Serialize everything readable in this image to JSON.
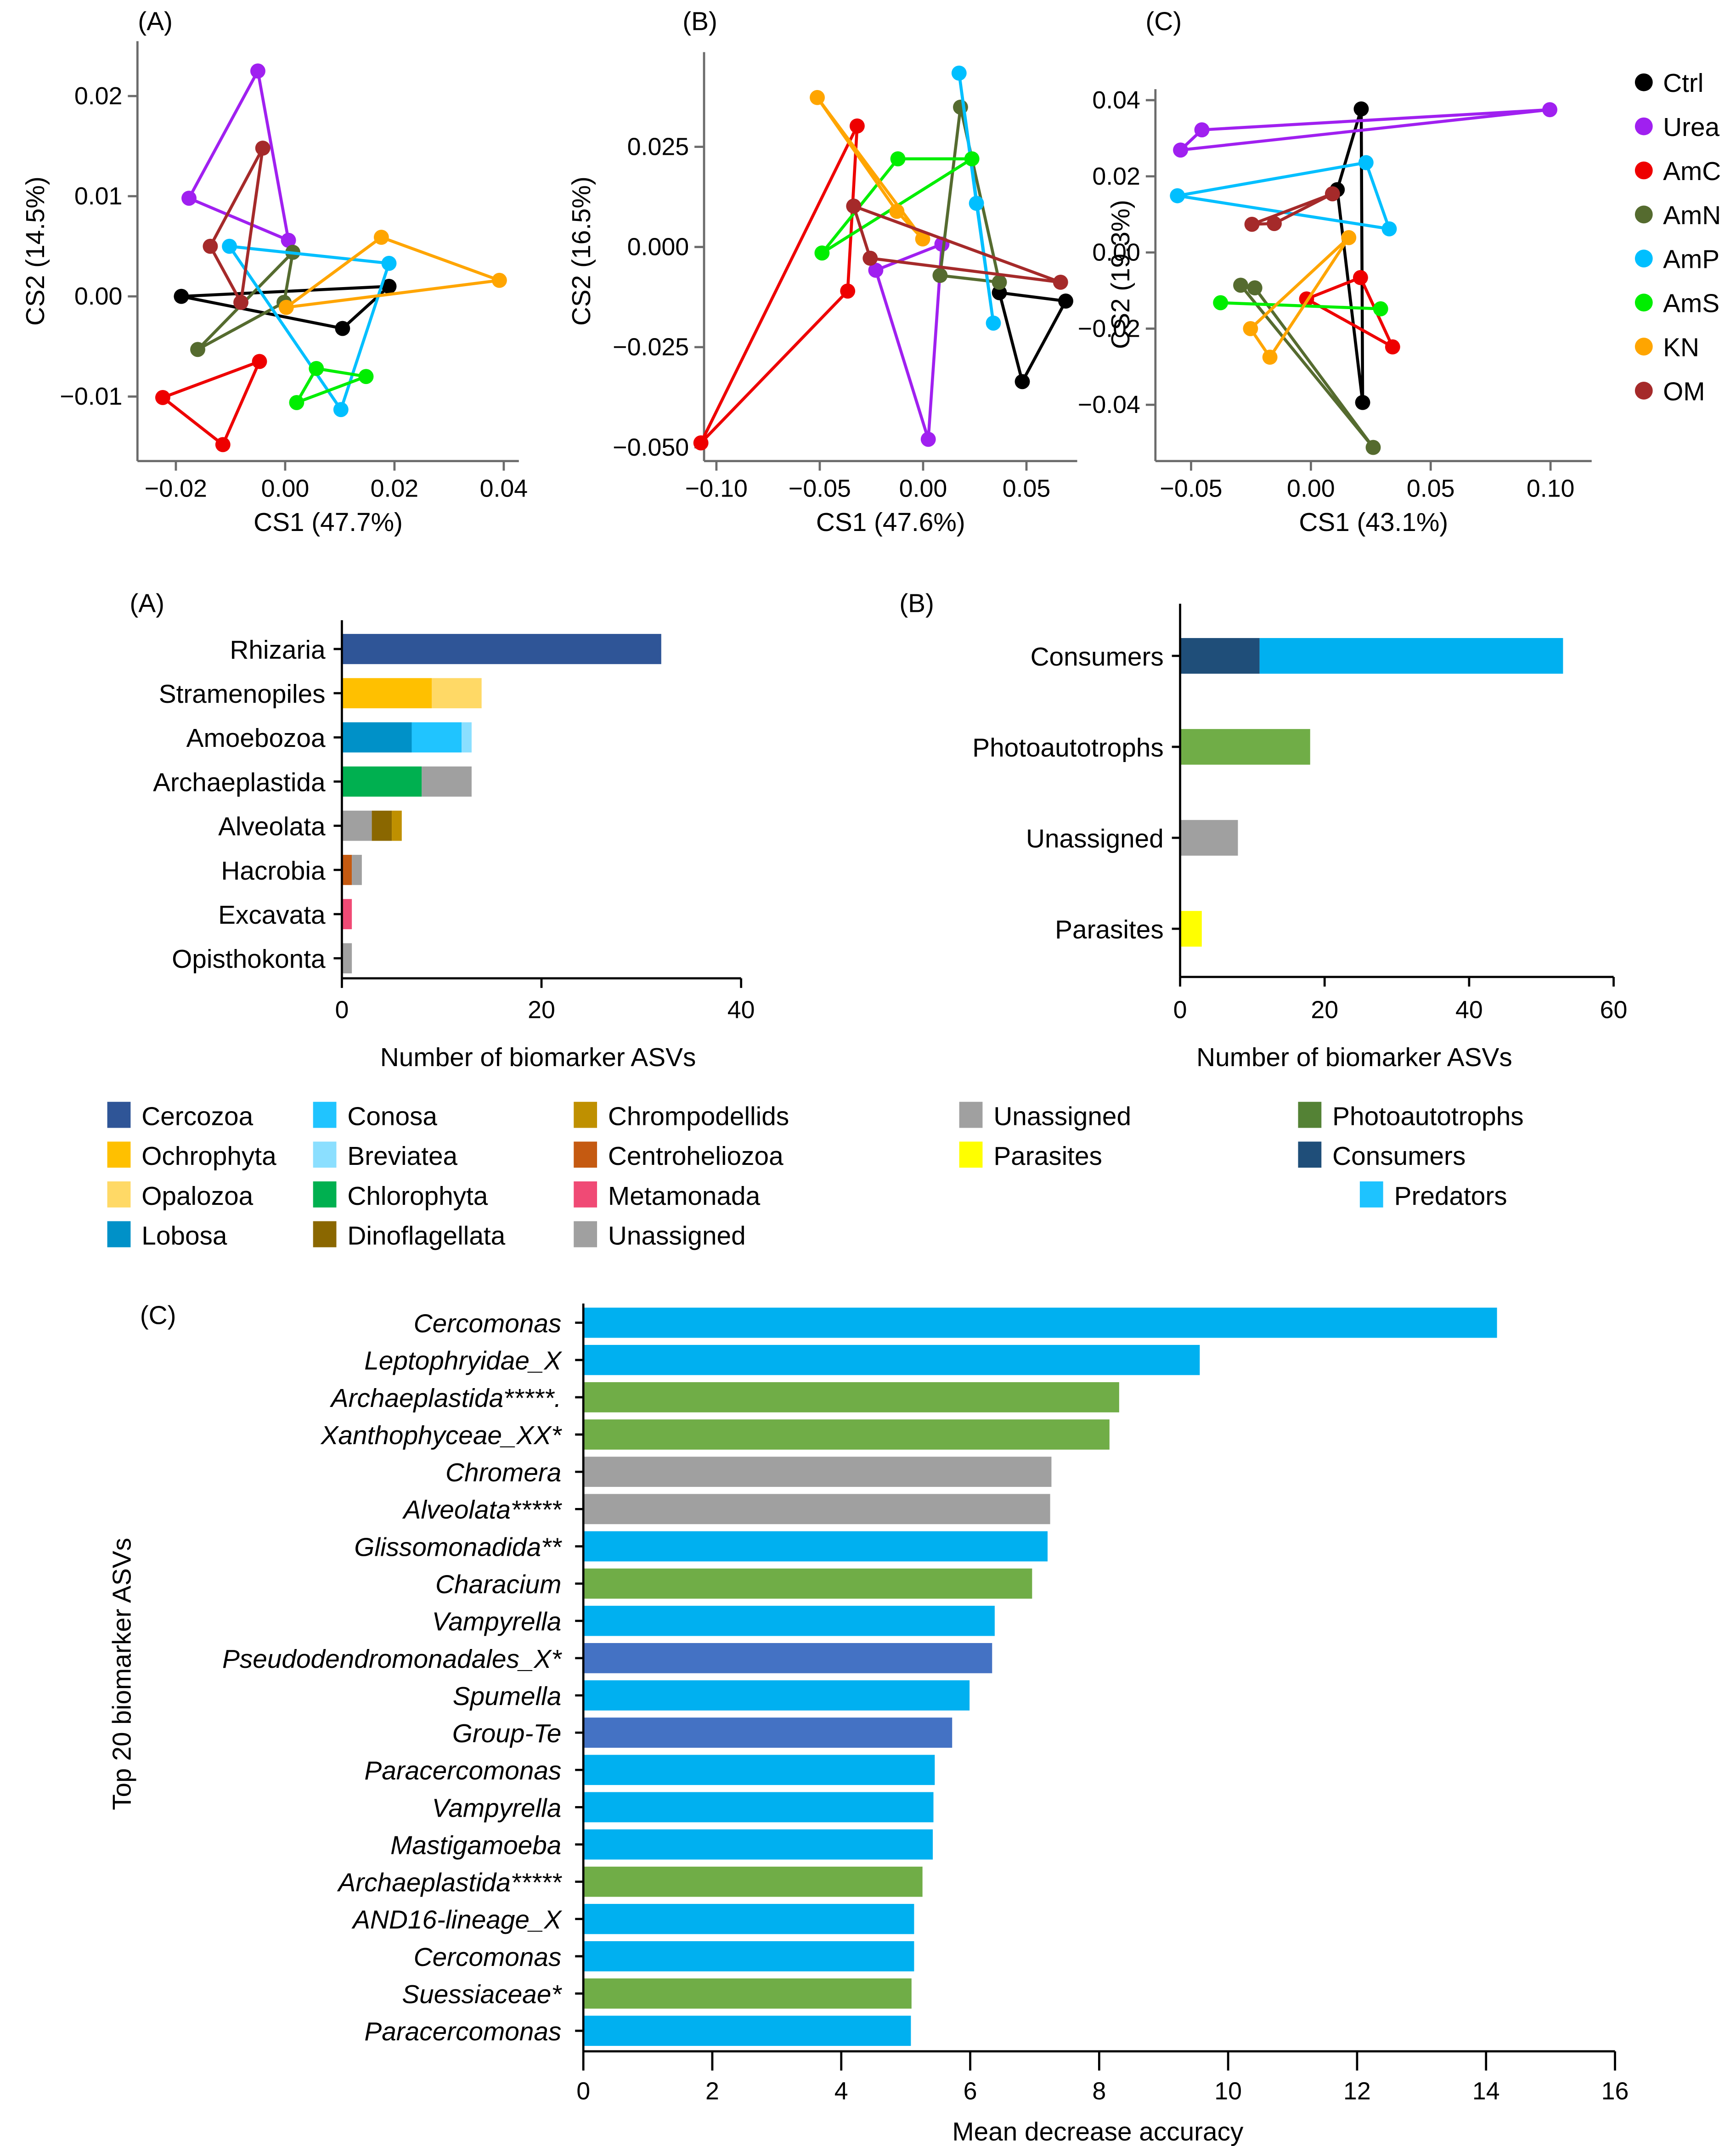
{
  "chart_data": [
    {
      "id": "scatter-A",
      "type": "scatter",
      "panel_label": "(A)",
      "xlabel": "CS1 (47.7%)",
      "ylabel": "CS2 (14.5%)",
      "xticks": [
        -0.02,
        0.0,
        0.02,
        0.04
      ],
      "xtick_labels": [
        "−0.02",
        "0.00",
        "0.02",
        "0.04"
      ],
      "yticks": [
        -0.01,
        0.0,
        0.01,
        0.02
      ],
      "ytick_labels": [
        "−0.01",
        "0.00",
        "0.01",
        "0.02"
      ],
      "xlim": [
        -0.025,
        0.042
      ],
      "ylim": [
        -0.0165,
        0.0262
      ],
      "series": [
        {
          "name": "Ctrl",
          "points": [
            [
              -0.019,
              0.0
            ],
            [
              0.019,
              0.001
            ],
            [
              0.0105,
              -0.0032
            ]
          ]
        },
        {
          "name": "Urea",
          "points": [
            [
              -0.005,
              0.0225
            ],
            [
              -0.0176,
              0.0098
            ],
            [
              0.0006,
              0.0056
            ]
          ]
        },
        {
          "name": "AmC",
          "points": [
            [
              -0.0047,
              -0.0065
            ],
            [
              -0.0224,
              -0.0101
            ],
            [
              -0.0114,
              -0.0148
            ]
          ]
        },
        {
          "name": "AmN",
          "points": [
            [
              0.0014,
              0.0044
            ],
            [
              -0.0002,
              -0.0006
            ],
            [
              -0.016,
              -0.0053
            ]
          ]
        },
        {
          "name": "AmP",
          "points": [
            [
              -0.0102,
              0.005
            ],
            [
              0.019,
              0.0033
            ],
            [
              0.0102,
              -0.0113
            ]
          ]
        },
        {
          "name": "AmS",
          "points": [
            [
              0.0057,
              -0.0072
            ],
            [
              0.0148,
              -0.008
            ],
            [
              0.0021,
              -0.0106
            ]
          ]
        },
        {
          "name": "KN",
          "points": [
            [
              0.0176,
              0.0059
            ],
            [
              0.0392,
              0.0016
            ],
            [
              0.0002,
              -0.0011
            ]
          ]
        },
        {
          "name": "OM",
          "points": [
            [
              -0.0041,
              0.0148
            ],
            [
              -0.0137,
              0.005
            ],
            [
              -0.0081,
              -0.0006
            ]
          ]
        }
      ]
    },
    {
      "id": "scatter-B",
      "type": "scatter",
      "panel_label": "(B)",
      "xlabel": "CS1 (47.6%)",
      "ylabel": "CS2 (16.5%)",
      "xticks": [
        -0.1,
        -0.05,
        0.0,
        0.05
      ],
      "xtick_labels": [
        "−0.10",
        "−0.05",
        "0.00",
        "0.05"
      ],
      "yticks": [
        -0.05,
        -0.025,
        0.0,
        0.025
      ],
      "ytick_labels": [
        "−0.050",
        "−0.025",
        "0.000",
        "0.025"
      ],
      "xlim": [
        -0.117,
        0.077
      ],
      "ylim": [
        -0.0535,
        0.0485
      ],
      "series": [
        {
          "name": "Ctrl",
          "points": [
            [
              0.0369,
              -0.0114
            ],
            [
              0.069,
              -0.0135
            ],
            [
              0.048,
              -0.0336
            ]
          ]
        },
        {
          "name": "Urea",
          "points": [
            [
              -0.0229,
              -0.0058
            ],
            [
              0.0091,
              0.0007
            ],
            [
              0.0025,
              -0.048
            ]
          ]
        },
        {
          "name": "AmC",
          "points": [
            [
              -0.0319,
              0.0302
            ],
            [
              -0.0365,
              -0.011
            ],
            [
              -0.1075,
              -0.0489
            ]
          ]
        },
        {
          "name": "AmN",
          "points": [
            [
              0.0181,
              0.0349
            ],
            [
              0.0082,
              -0.0071
            ],
            [
              0.0369,
              -0.0088
            ]
          ]
        },
        {
          "name": "AmP",
          "points": [
            [
              0.0174,
              0.0434
            ],
            [
              0.0258,
              0.0109
            ],
            [
              0.034,
              -0.019
            ]
          ]
        },
        {
          "name": "AmS",
          "points": [
            [
              -0.0122,
              0.022
            ],
            [
              0.0236,
              0.022
            ],
            [
              -0.0489,
              -0.0015
            ]
          ]
        },
        {
          "name": "KN",
          "points": [
            [
              -0.0512,
              0.0373
            ],
            [
              -0.0127,
              0.0089
            ],
            [
              -0.0002,
              0.002
            ]
          ]
        },
        {
          "name": "OM",
          "points": [
            [
              -0.0336,
              0.0102
            ],
            [
              -0.0256,
              -0.0028
            ],
            [
              0.0665,
              -0.0088
            ]
          ]
        }
      ]
    },
    {
      "id": "scatter-C",
      "type": "scatter",
      "panel_label": "(C)",
      "xlabel": "CS1 (43.1%)",
      "ylabel": "CS2 (19.3%)",
      "xticks": [
        -0.05,
        0.0,
        0.05,
        0.1
      ],
      "xtick_labels": [
        "−0.05",
        "0.00",
        "0.05",
        "0.10"
      ],
      "yticks": [
        -0.04,
        -0.02,
        0.0,
        0.02,
        0.04
      ],
      "ytick_labels": [
        "−0.04",
        "−0.02",
        "0.00",
        "0.02",
        "0.04"
      ],
      "xlim": [
        -0.065,
        0.106
      ],
      "ylim": [
        -0.055,
        0.043
      ],
      "legend": "right",
      "series": [
        {
          "name": "Ctrl",
          "points": [
            [
              0.021,
              0.0377
            ],
            [
              0.011,
              0.0165
            ],
            [
              0.0216,
              -0.0394
            ]
          ]
        },
        {
          "name": "Urea",
          "points": [
            [
              0.0997,
              0.0375
            ],
            [
              -0.0455,
              0.0322
            ],
            [
              -0.0544,
              0.0269
            ]
          ]
        },
        {
          "name": "AmC",
          "points": [
            [
              0.0207,
              -0.0066
            ],
            [
              -0.0018,
              -0.0122
            ],
            [
              0.0341,
              -0.0248
            ]
          ]
        },
        {
          "name": "AmN",
          "points": [
            [
              -0.0293,
              -0.0086
            ],
            [
              -0.0234,
              -0.0093
            ],
            [
              0.026,
              -0.0512
            ]
          ]
        },
        {
          "name": "AmP",
          "points": [
            [
              0.023,
              0.0236
            ],
            [
              -0.0557,
              0.0149
            ],
            [
              0.0327,
              0.0062
            ]
          ]
        },
        {
          "name": "AmS",
          "points": [
            [
              -0.0377,
              -0.0132
            ],
            [
              0.0291,
              -0.0148
            ]
          ]
        },
        {
          "name": "KN",
          "points": [
            [
              0.0158,
              0.0039
            ],
            [
              -0.0252,
              -0.02
            ],
            [
              -0.0171,
              -0.0275
            ]
          ]
        },
        {
          "name": "OM",
          "points": [
            [
              0.009,
              0.0154
            ],
            [
              -0.0246,
              0.0074
            ],
            [
              -0.0153,
              0.0076
            ]
          ]
        }
      ]
    },
    {
      "id": "bar-A",
      "type": "bar",
      "orientation": "horizontal",
      "stacked": true,
      "panel_label": "(A)",
      "xlabel": "Number of biomarker ASVs",
      "xticks": [
        0,
        20,
        40
      ],
      "xlim": [
        0,
        40
      ],
      "categories": [
        "Rhizaria",
        "Stramenopiles",
        "Amoebozoa",
        "Archaeplastida",
        "Alveolata",
        "Hacrobia",
        "Excavata",
        "Opisthokonta"
      ],
      "stacks": [
        [
          {
            "name": "Cercozoa",
            "value": 32
          }
        ],
        [
          {
            "name": "Ochrophyta",
            "value": 9
          },
          {
            "name": "Opalozoa",
            "value": 5
          }
        ],
        [
          {
            "name": "Lobosa",
            "value": 7
          },
          {
            "name": "Conosa",
            "value": 5
          },
          {
            "name": "Breviatea",
            "value": 1
          }
        ],
        [
          {
            "name": "Chlorophyta",
            "value": 8
          },
          {
            "name": "Unassigned",
            "value": 5
          }
        ],
        [
          {
            "name": "Unassigned",
            "value": 3
          },
          {
            "name": "Dinoflagellata",
            "value": 2
          },
          {
            "name": "Chrompodellids",
            "value": 1
          }
        ],
        [
          {
            "name": "Centroheliozoa",
            "value": 1
          },
          {
            "name": "Unassigned",
            "value": 1
          }
        ],
        [
          {
            "name": "Metamonada",
            "value": 1
          }
        ],
        [
          {
            "name": "Unassigned",
            "value": 1
          }
        ]
      ],
      "legend": [
        {
          "name": "Cercozoa",
          "color": "#2f5597"
        },
        {
          "name": "Ochrophyta",
          "color": "#ffc000"
        },
        {
          "name": "Opalozoa",
          "color": "#ffd966"
        },
        {
          "name": "Lobosa",
          "color": "#0091c8"
        },
        {
          "name": "Conosa",
          "color": "#20c4ff"
        },
        {
          "name": "Breviatea",
          "color": "#8bdfff"
        },
        {
          "name": "Chlorophyta",
          "color": "#00b050"
        },
        {
          "name": "Dinoflagellata",
          "color": "#8a6700"
        },
        {
          "name": "Chrompodellids",
          "color": "#bf9000"
        },
        {
          "name": "Centroheliozoa",
          "color": "#c55a11"
        },
        {
          "name": "Metamonada",
          "color": "#f04a75"
        },
        {
          "name": "Unassigned",
          "color": "#a0a0a0"
        }
      ]
    },
    {
      "id": "bar-B",
      "type": "bar",
      "orientation": "horizontal",
      "stacked": true,
      "panel_label": "(B)",
      "xlabel": "Number of biomarker ASVs",
      "xticks": [
        0,
        20,
        40,
        60
      ],
      "xlim": [
        0,
        60
      ],
      "categories": [
        "Consumers",
        "Photoautotrophs",
        "Unassigned",
        "Parasites"
      ],
      "stacks": [
        [
          {
            "name": "Consumers",
            "value": 11
          },
          {
            "name": "Predators",
            "value": 42
          }
        ],
        [
          {
            "name": "Photoautotrophs",
            "value": 18
          }
        ],
        [
          {
            "name": "Unassigned",
            "value": 8
          }
        ],
        [
          {
            "name": "Parasites",
            "value": 3
          }
        ]
      ],
      "legend": [
        {
          "name": "Unassigned",
          "color": "#a0a0a0"
        },
        {
          "name": "Parasites",
          "color": "#ffff00"
        },
        {
          "name": "Photoautotrophs",
          "color": "#548235"
        },
        {
          "name": "Consumers",
          "color": "#1f4e79"
        },
        {
          "name": "Predators",
          "color": "#1ec3ff"
        }
      ]
    },
    {
      "id": "bar-C",
      "type": "bar",
      "orientation": "horizontal",
      "panel_label": "(C)",
      "xlabel": "Mean decrease accuracy",
      "ylabel": "Top 20 biomarker ASVs",
      "xticks": [
        0,
        2,
        4,
        6,
        8,
        10,
        12,
        14,
        16
      ],
      "xlim": [
        0,
        16
      ],
      "categories": [
        "Cercomonas",
        "Leptophryidae_X",
        "Archaeplastida*****.",
        "Xanthophyceae_XX*",
        "Chromera",
        "Alveolata*****",
        "Glissomonadida**",
        "Characium",
        "Vampyrella",
        "Pseudodendromonadales_X*",
        "Spumella",
        "Group-Te",
        "Paracercomonas",
        "Vampyrella",
        "Mastigamoeba",
        "Archaeplastida*****",
        "AND16-lineage_X",
        "Cercomonas",
        "Suessiaceae*",
        "Paracercomonas"
      ],
      "values": [
        14.17,
        9.56,
        8.31,
        8.16,
        7.26,
        7.24,
        7.2,
        6.96,
        6.38,
        6.34,
        5.99,
        5.72,
        5.45,
        5.43,
        5.42,
        5.26,
        5.13,
        5.13,
        5.09,
        5.08
      ],
      "groups": [
        "predator",
        "predator",
        "photo",
        "photo",
        "unassigned",
        "unassigned",
        "predator",
        "photo",
        "predator",
        "consumer",
        "predator",
        "consumer",
        "predator",
        "predator",
        "predator",
        "photo",
        "predator",
        "predator",
        "photo",
        "predator"
      ],
      "group_colors": {
        "predator": "#00b0f0",
        "photo": "#70ad47",
        "unassigned": "#a0a0a0",
        "consumer": "#4472c4"
      }
    }
  ],
  "series_colors": {
    "Ctrl": "#000000",
    "Urea": "#a020f0",
    "AmC": "#ee0000",
    "AmN": "#556b2f",
    "AmP": "#00bfff",
    "AmS": "#00ee00",
    "KN": "#ffa500",
    "OM": "#a52a2a"
  },
  "bar_colors_b": {
    "Consumers": "#1f4e79",
    "Predators": "#00b0f0",
    "Photoautotrophs": "#70ad47",
    "Unassigned": "#a0a0a0",
    "Parasites": "#ffff00"
  },
  "bar_colors_a": {
    "Cercozoa": "#2f5597",
    "Ochrophyta": "#ffc000",
    "Opalozoa": "#ffd966",
    "Lobosa": "#0091c8",
    "Conosa": "#20c4ff",
    "Breviatea": "#8bdfff",
    "Chlorophyta": "#00b050",
    "Dinoflagellata": "#8a6700",
    "Chrompodellids": "#bf9000",
    "Centroheliozoa": "#c55a11",
    "Metamonada": "#f04a75",
    "Unassigned": "#a0a0a0"
  }
}
